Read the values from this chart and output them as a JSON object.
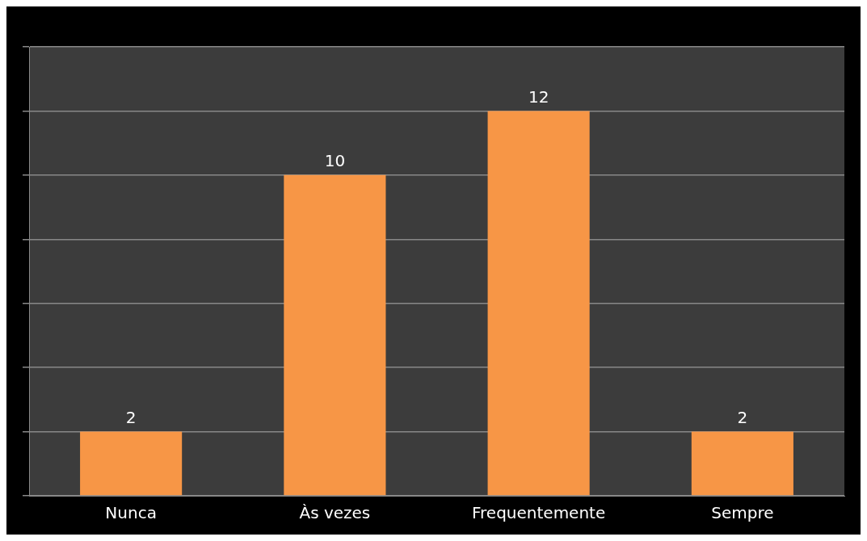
{
  "chart_data": {
    "type": "bar",
    "categories": [
      "Nunca",
      "Às vezes",
      "Frequentemente",
      "Sempre"
    ],
    "values": [
      2,
      10,
      12,
      2
    ],
    "color": "#f79646",
    "data_labels": true,
    "grid": "y",
    "legend": false,
    "tick_labels": "x",
    "ylim": [
      0,
      14
    ],
    "yticks": [
      {
        "value": 0,
        "label": null
      },
      {
        "value": 2,
        "label": null
      },
      {
        "value": 4,
        "label": null
      },
      {
        "value": 6,
        "label": null
      },
      {
        "value": 8,
        "label": null
      },
      {
        "value": 10,
        "label": null
      },
      {
        "value": 12,
        "label": null
      },
      {
        "value": 14,
        "label": null
      }
    ]
  }
}
